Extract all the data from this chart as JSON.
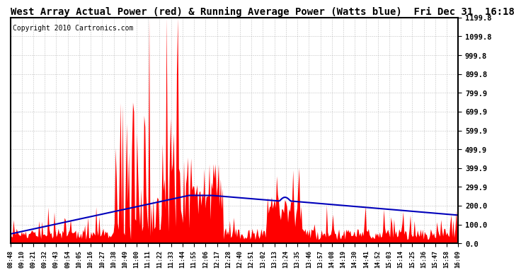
{
  "title": "West Array Actual Power (red) & Running Average Power (Watts blue)  Fri Dec 31  16:18",
  "copyright": "Copyright 2010 Cartronics.com",
  "y_ticks": [
    0.0,
    100.0,
    200.0,
    299.9,
    399.9,
    499.9,
    599.9,
    699.9,
    799.9,
    899.8,
    999.8,
    1099.8,
    1199.8
  ],
  "ylim": [
    0.0,
    1199.8
  ],
  "x_labels": [
    "08:48",
    "09:10",
    "09:21",
    "09:32",
    "09:43",
    "09:54",
    "10:05",
    "10:16",
    "10:27",
    "10:38",
    "10:49",
    "11:00",
    "11:11",
    "11:22",
    "11:33",
    "11:44",
    "11:55",
    "12:06",
    "12:17",
    "12:28",
    "12:40",
    "12:51",
    "13:02",
    "13:13",
    "13:24",
    "13:35",
    "13:46",
    "13:57",
    "14:08",
    "14:19",
    "14:30",
    "14:41",
    "14:52",
    "15:03",
    "15:14",
    "15:25",
    "15:36",
    "15:47",
    "15:58",
    "16:09"
  ],
  "background_color": "#ffffff",
  "actual_color": "#ff0000",
  "average_color": "#0000bb",
  "grid_color": "#aaaaaa",
  "title_fontsize": 10,
  "copyright_fontsize": 7
}
